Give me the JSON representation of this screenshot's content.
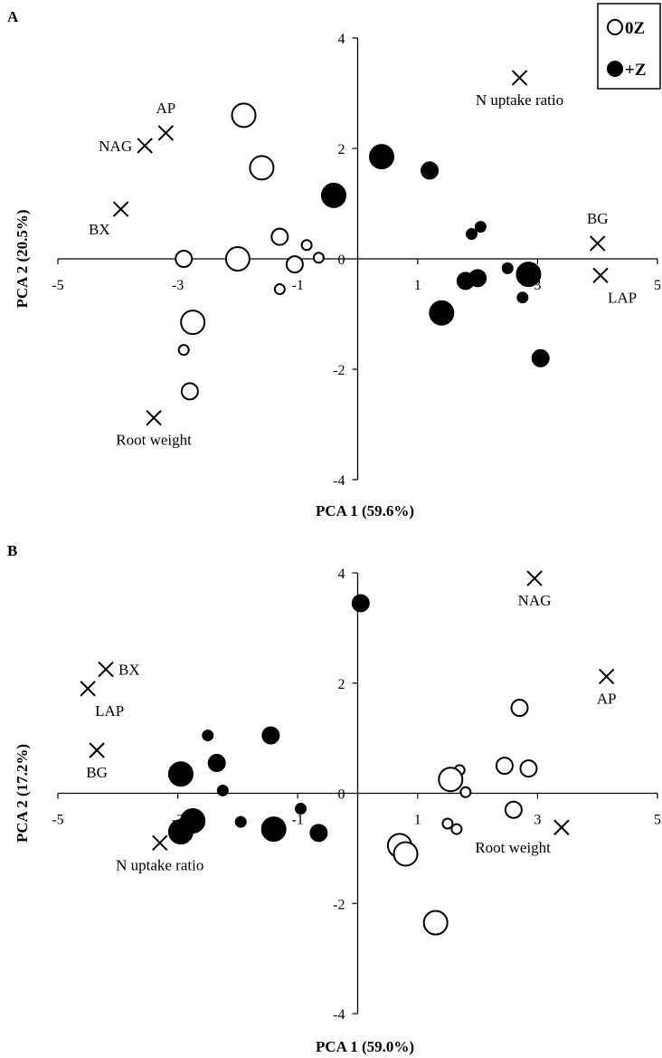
{
  "chart_data": [
    {
      "type": "scatter",
      "panel_label": "A",
      "xlabel": "PCA 1 (59.6%)",
      "ylabel": "PCA 2 (20.5%)",
      "xlim": [
        -5,
        5
      ],
      "ylim": [
        -4,
        4
      ],
      "x_ticks": [
        -5,
        -3,
        -1,
        1,
        3,
        5
      ],
      "y_ticks": [
        -4,
        -2,
        2,
        4
      ],
      "zero_label": "0",
      "legend": {
        "placement": "top-right",
        "entries": [
          {
            "symbol": "open",
            "label": "0Z"
          },
          {
            "symbol": "filled",
            "label": "+Z"
          }
        ]
      },
      "series": [
        {
          "name": "0Z",
          "fill": "open",
          "points": [
            {
              "x": -1.9,
              "y": 2.6,
              "size": "large"
            },
            {
              "x": -1.6,
              "y": 1.65,
              "size": "large"
            },
            {
              "x": -1.3,
              "y": 0.4,
              "size": "medium"
            },
            {
              "x": -0.85,
              "y": 0.25,
              "size": "small"
            },
            {
              "x": -0.65,
              "y": 0.02,
              "size": "small"
            },
            {
              "x": -1.05,
              "y": -0.1,
              "size": "medium"
            },
            {
              "x": -1.3,
              "y": -0.55,
              "size": "small"
            },
            {
              "x": -2.0,
              "y": 0.0,
              "size": "large"
            },
            {
              "x": -2.9,
              "y": 0.0,
              "size": "medium"
            },
            {
              "x": -2.75,
              "y": -1.15,
              "size": "large"
            },
            {
              "x": -2.9,
              "y": -1.65,
              "size": "small"
            },
            {
              "x": -2.8,
              "y": -2.4,
              "size": "medium"
            }
          ]
        },
        {
          "name": "+Z",
          "fill": "filled",
          "points": [
            {
              "x": 0.4,
              "y": 1.85,
              "size": "large"
            },
            {
              "x": -0.4,
              "y": 1.15,
              "size": "large"
            },
            {
              "x": 1.2,
              "y": 1.6,
              "size": "medium"
            },
            {
              "x": 1.9,
              "y": 0.45,
              "size": "small"
            },
            {
              "x": 2.05,
              "y": 0.58,
              "size": "small"
            },
            {
              "x": 1.8,
              "y": -0.4,
              "size": "medium"
            },
            {
              "x": 2.0,
              "y": -0.35,
              "size": "medium"
            },
            {
              "x": 2.5,
              "y": -0.17,
              "size": "small"
            },
            {
              "x": 2.75,
              "y": -0.7,
              "size": "small"
            },
            {
              "x": 2.85,
              "y": -0.28,
              "size": "large"
            },
            {
              "x": 1.4,
              "y": -0.98,
              "size": "large"
            },
            {
              "x": 3.05,
              "y": -1.8,
              "size": "medium"
            }
          ]
        },
        {
          "name": "loadings",
          "marker": "x",
          "points": [
            {
              "x": 2.7,
              "y": 3.28,
              "label": "N uptake ratio",
              "label_pos": "below"
            },
            {
              "x": -3.2,
              "y": 2.28,
              "label": "AP",
              "label_pos": "above"
            },
            {
              "x": -3.55,
              "y": 2.05,
              "label": "NAG",
              "label_pos": "left"
            },
            {
              "x": -3.95,
              "y": 0.9,
              "label": "BX",
              "label_pos": "below-left"
            },
            {
              "x": 4.0,
              "y": 0.28,
              "label": "BG",
              "label_pos": "above"
            },
            {
              "x": 4.05,
              "y": -0.3,
              "label": "LAP",
              "label_pos": "below-right"
            },
            {
              "x": -3.4,
              "y": -2.88,
              "label": "Root weight",
              "label_pos": "below"
            }
          ]
        }
      ]
    },
    {
      "type": "scatter",
      "panel_label": "B",
      "xlabel": "PCA 1 (59.0%)",
      "ylabel": "PCA 2 (17.2%)",
      "xlim": [
        -5,
        5
      ],
      "ylim": [
        -4,
        4
      ],
      "x_ticks": [
        -5,
        -3,
        -1,
        1,
        3,
        5
      ],
      "y_ticks": [
        -4,
        -2,
        2,
        4
      ],
      "zero_label": "0",
      "series": [
        {
          "name": "0Z",
          "fill": "open",
          "points": [
            {
              "x": 2.7,
              "y": 1.55,
              "size": "medium"
            },
            {
              "x": 2.45,
              "y": 0.5,
              "size": "medium"
            },
            {
              "x": 2.85,
              "y": 0.45,
              "size": "medium"
            },
            {
              "x": 1.7,
              "y": 0.42,
              "size": "small"
            },
            {
              "x": 1.55,
              "y": 0.25,
              "size": "large"
            },
            {
              "x": 1.8,
              "y": 0.02,
              "size": "small"
            },
            {
              "x": 2.6,
              "y": -0.3,
              "size": "medium"
            },
            {
              "x": 1.5,
              "y": -0.55,
              "size": "small"
            },
            {
              "x": 1.65,
              "y": -0.65,
              "size": "small"
            },
            {
              "x": 0.7,
              "y": -0.95,
              "size": "large"
            },
            {
              "x": 0.8,
              "y": -1.1,
              "size": "large"
            },
            {
              "x": 1.3,
              "y": -2.35,
              "size": "large"
            }
          ]
        },
        {
          "name": "+Z",
          "fill": "filled",
          "points": [
            {
              "x": 0.05,
              "y": 3.45,
              "size": "medium"
            },
            {
              "x": -1.45,
              "y": 1.05,
              "size": "medium"
            },
            {
              "x": -2.5,
              "y": 1.05,
              "size": "small"
            },
            {
              "x": -2.35,
              "y": 0.55,
              "size": "medium"
            },
            {
              "x": -2.95,
              "y": 0.35,
              "size": "large"
            },
            {
              "x": -2.25,
              "y": 0.05,
              "size": "small"
            },
            {
              "x": -0.95,
              "y": -0.28,
              "size": "small"
            },
            {
              "x": -1.95,
              "y": -0.52,
              "size": "small"
            },
            {
              "x": -2.75,
              "y": -0.5,
              "size": "large"
            },
            {
              "x": -2.95,
              "y": -0.7,
              "size": "large"
            },
            {
              "x": -1.4,
              "y": -0.65,
              "size": "large"
            },
            {
              "x": -0.65,
              "y": -0.72,
              "size": "medium"
            }
          ]
        },
        {
          "name": "loadings",
          "marker": "x",
          "points": [
            {
              "x": 2.95,
              "y": 3.9,
              "label": "NAG",
              "label_pos": "below"
            },
            {
              "x": 4.15,
              "y": 2.12,
              "label": "AP",
              "label_pos": "below"
            },
            {
              "x": -4.2,
              "y": 2.25,
              "label": "BX",
              "label_pos": "right"
            },
            {
              "x": -4.5,
              "y": 1.9,
              "label": "LAP",
              "label_pos": "below-right"
            },
            {
              "x": -4.35,
              "y": 0.78,
              "label": "BG",
              "label_pos": "below"
            },
            {
              "x": 3.4,
              "y": -0.62,
              "label": "Root weight",
              "label_pos": "below-left"
            },
            {
              "x": -3.3,
              "y": -0.9,
              "label": "N uptake ratio",
              "label_pos": "below"
            }
          ]
        }
      ]
    }
  ]
}
